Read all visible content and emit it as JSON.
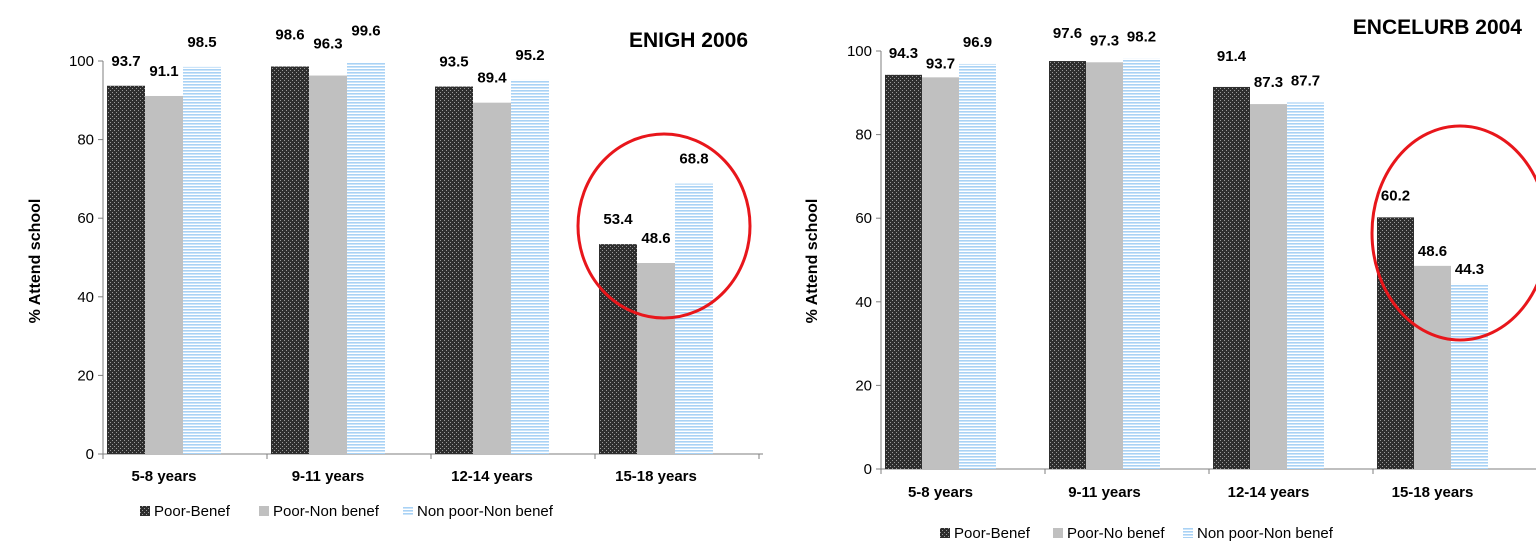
{
  "chart_data": [
    {
      "type": "bar",
      "title": "ENIGH 2006",
      "ylabel": "% Attend school",
      "xlabel": "",
      "ylim": [
        0,
        100
      ],
      "yticks": [
        "0",
        "20",
        "40",
        "60",
        "80",
        "100"
      ],
      "categories": [
        "5-8 years",
        "9-11 years",
        "12-14 years",
        "15-18 years"
      ],
      "series": [
        {
          "name": "Poor-Benef",
          "values": [
            93.7,
            98.6,
            93.5,
            53.4
          ],
          "labels": [
            "93.7",
            "98.6",
            "93.5",
            "53.4"
          ]
        },
        {
          "name": "Poor-Non benef",
          "values": [
            91.1,
            96.3,
            89.4,
            48.6
          ],
          "labels": [
            "91.1",
            "96.3",
            "89.4",
            "48.6"
          ]
        },
        {
          "name": "Non poor-Non benef",
          "values": [
            98.5,
            99.6,
            95.2,
            68.8
          ],
          "labels": [
            "98.5",
            "99.6",
            "95.2",
            "68.8"
          ]
        }
      ],
      "legend_position": "bottom",
      "grid": false,
      "highlight": {
        "category": "15-18 years",
        "color": "#e8161b"
      }
    },
    {
      "type": "bar",
      "title": "ENCELURB 2004",
      "ylabel": "% Attend school",
      "xlabel": "",
      "ylim": [
        0,
        100
      ],
      "yticks": [
        "0",
        "20",
        "40",
        "60",
        "80",
        "100"
      ],
      "categories": [
        "5-8 years",
        "9-11 years",
        "12-14 years",
        "15-18 years"
      ],
      "series": [
        {
          "name": "Poor-Benef",
          "values": [
            94.3,
            97.6,
            91.4,
            60.2
          ],
          "labels": [
            "94.3",
            "97.6",
            "91.4",
            "60.2"
          ]
        },
        {
          "name": "Poor-No benef",
          "values": [
            93.7,
            97.3,
            87.3,
            48.6
          ],
          "labels": [
            "93.7",
            "97.3",
            "87.3",
            "48.6"
          ]
        },
        {
          "name": "Non poor-Non benef",
          "values": [
            96.9,
            98.2,
            87.7,
            44.3
          ],
          "labels": [
            "96.9",
            "98.2",
            "87.7",
            "44.3"
          ]
        }
      ],
      "legend_position": "bottom",
      "grid": false,
      "highlight": {
        "category": "15-18 years",
        "color": "#e8161b"
      }
    }
  ],
  "colors": {
    "poor_benef": "#3a3a3a",
    "poor_nonbenef": "#c0c0c0",
    "nonpoor": "#a9d2f5",
    "highlight": "#e8161b"
  }
}
